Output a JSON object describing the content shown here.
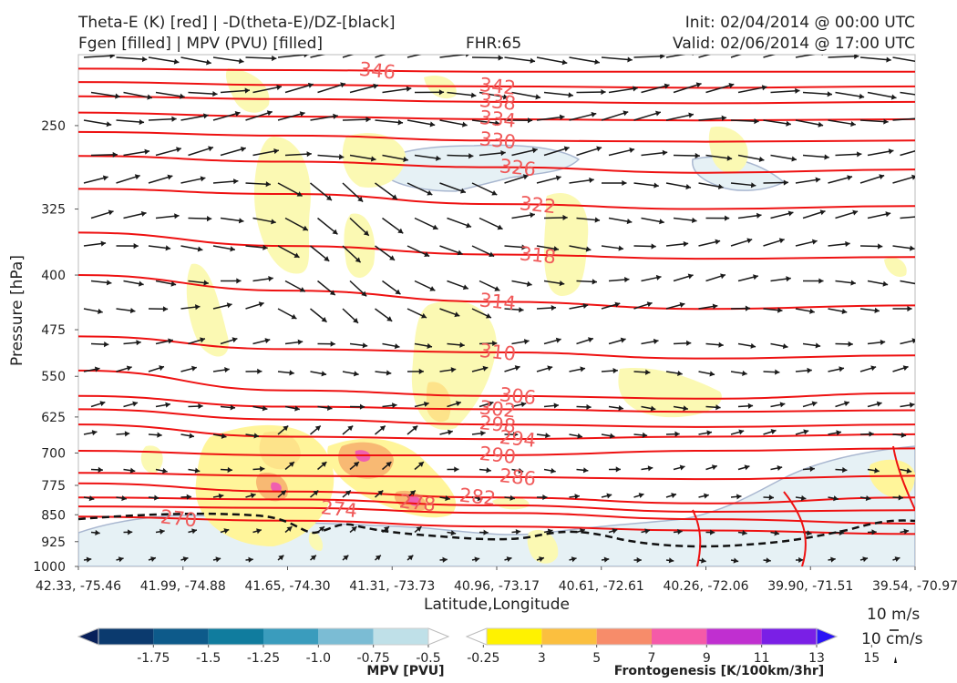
{
  "header": {
    "title_line1": "Theta-E (K) [red] | -D(theta-E)/DZ-[black]",
    "title_line2": "Fgen [filled] | MPV (PVU) [filled]",
    "fhr": "FHR:65",
    "init": "Init: 02/04/2014 @ 00:00 UTC",
    "valid": "Valid: 02/06/2014 @ 17:00 UTC"
  },
  "chart_data": {
    "type": "cross-section",
    "ylabel": "Pressure [hPa]",
    "xlabel": "Latitude,Longitude",
    "y_ticks": [
      250,
      325,
      400,
      475,
      550,
      625,
      700,
      775,
      850,
      925,
      1000
    ],
    "y_range": [
      200,
      1000
    ],
    "y_scale": "log",
    "x_ticks": [
      "42.33, -75.46",
      "41.99, -74.88",
      "41.65, -74.30",
      "41.31, -73.73",
      "40.96, -73.17",
      "40.61, -72.61",
      "40.26, -72.06",
      "39.90, -71.51",
      "39.54, -70.97"
    ],
    "theta_e_contours": [
      {
        "label": "270",
        "p": [
          855,
          866,
          882,
          893,
          903
        ]
      },
      {
        "label": "274",
        "p": [
          828,
          832,
          845,
          862,
          874
        ]
      },
      {
        "label": "278",
        "p": [
          805,
          810,
          825,
          842,
          838
        ]
      },
      {
        "label": "282",
        "p": [
          770,
          790,
          805,
          820,
          805
        ]
      },
      {
        "label": "286",
        "p": [
          745,
          752,
          755,
          760,
          752
        ]
      },
      {
        "label": "290",
        "p": [
          695,
          705,
          705,
          695,
          690
        ]
      },
      {
        "label": "294",
        "p": [
          640,
          665,
          670,
          665,
          660
        ]
      },
      {
        "label": "298",
        "p": [
          610,
          630,
          640,
          645,
          640
        ]
      },
      {
        "label": "302",
        "p": [
          585,
          605,
          610,
          615,
          612
        ]
      },
      {
        "label": "306",
        "p": [
          540,
          575,
          585,
          590,
          580
        ]
      },
      {
        "label": "310",
        "p": [
          485,
          505,
          510,
          520,
          515
        ]
      },
      {
        "label": "314",
        "p": [
          400,
          420,
          435,
          445,
          440
        ]
      },
      {
        "label": "318",
        "p": [
          350,
          365,
          375,
          380,
          378
        ]
      },
      {
        "label": "322",
        "p": [
          305,
          310,
          320,
          325,
          322
        ]
      },
      {
        "label": "326",
        "p": [
          275,
          280,
          285,
          290,
          287
        ]
      },
      {
        "label": "330",
        "p": [
          255,
          258,
          262,
          263,
          262
        ]
      },
      {
        "label": "334",
        "p": [
          240,
          243,
          245,
          246,
          245
        ]
      },
      {
        "label": "338",
        "p": [
          228,
          230,
          232,
          233,
          232
        ]
      },
      {
        "label": "342",
        "p": [
          218,
          220,
          221,
          222,
          221
        ]
      },
      {
        "label": "346",
        "p": [
          209,
          210,
          211,
          211,
          211
        ]
      }
    ],
    "mpv_colorbar": {
      "title": "MPV [PVU]",
      "ticks": [
        "-1.75",
        "-1.5",
        "-1.25",
        "-1.0",
        "-0.75",
        "-0.5",
        "-0.25"
      ],
      "colors": [
        "#08205a",
        "#0b3a6e",
        "#0d5a8a",
        "#107c9e",
        "#3a9cbd",
        "#7bbcd4",
        "#bfe0e8",
        "#ffffff"
      ]
    },
    "fgen_colorbar": {
      "title": "Frontogenesis [K/100km/3hr]",
      "ticks": [
        "3",
        "5",
        "7",
        "9",
        "11",
        "13",
        "15"
      ],
      "colors": [
        "#ffffff",
        "#fff200",
        "#fbbf3f",
        "#f78c6a",
        "#f55aa8",
        "#c02fd0",
        "#7a1fe6",
        "#2a14f5"
      ]
    },
    "reference_vectors": {
      "horizontal": "10 m/s",
      "vertical": "10 cm/s"
    }
  }
}
